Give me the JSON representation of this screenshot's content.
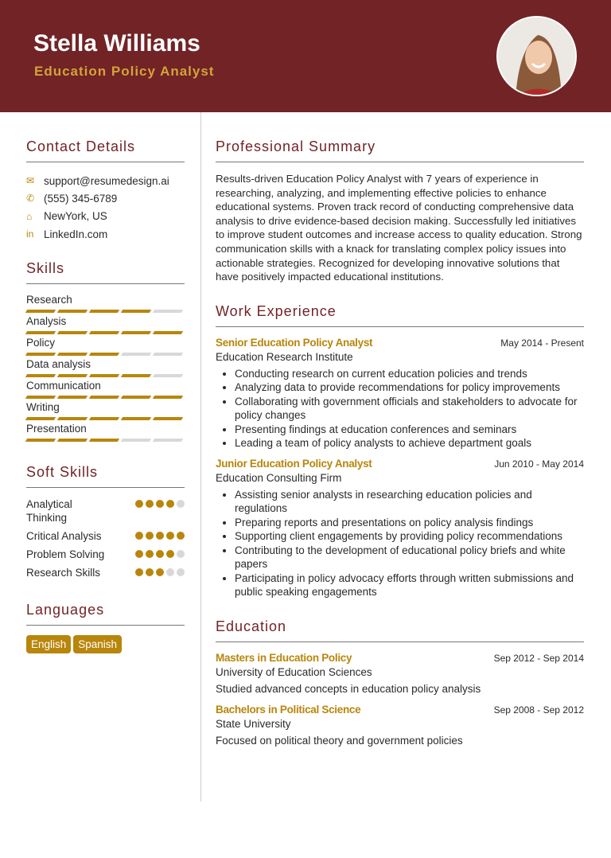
{
  "header": {
    "name": "Stella Williams",
    "title": "Education Policy Analyst"
  },
  "colors": {
    "header_bg": "#722326",
    "accent": "#b8860b",
    "heading": "#722326"
  },
  "contact": {
    "heading": "Contact Details",
    "items": [
      {
        "icon": "envelope-icon",
        "text": "support@resumedesign.ai"
      },
      {
        "icon": "phone-icon",
        "text": "(555) 345-6789"
      },
      {
        "icon": "home-icon",
        "text": "NewYork, US"
      },
      {
        "icon": "linkedin-icon",
        "text": "LinkedIn.com"
      }
    ]
  },
  "skills": {
    "heading": "Skills",
    "max": 5,
    "items": [
      {
        "label": "Research",
        "level": 4
      },
      {
        "label": "Analysis",
        "level": 5
      },
      {
        "label": "Policy",
        "level": 3
      },
      {
        "label": "Data analysis",
        "level": 4
      },
      {
        "label": "Communication",
        "level": 5
      },
      {
        "label": "Writing",
        "level": 5
      },
      {
        "label": "Presentation",
        "level": 3
      }
    ]
  },
  "soft_skills": {
    "heading": "Soft Skills",
    "max": 5,
    "items": [
      {
        "label": "Analytical Thinking",
        "level": 4
      },
      {
        "label": "Critical Analysis",
        "level": 5
      },
      {
        "label": "Problem Solving",
        "level": 4
      },
      {
        "label": "Research Skills",
        "level": 3
      }
    ]
  },
  "languages": {
    "heading": "Languages",
    "items": [
      "English",
      "Spanish"
    ]
  },
  "summary": {
    "heading": "Professional Summary",
    "text": "Results-driven Education Policy Analyst with 7 years of experience in researching, analyzing, and implementing effective policies to enhance educational systems. Proven track record of conducting comprehensive data analysis to drive evidence-based decision making. Successfully led initiatives to improve student outcomes and increase access to quality education. Strong communication skills with a knack for translating complex policy issues into actionable strategies. Recognized for developing innovative solutions that have positively impacted educational institutions."
  },
  "work": {
    "heading": "Work Experience",
    "jobs": [
      {
        "title": "Senior Education Policy Analyst",
        "dates": "May 2014 - Present",
        "org": "Education Research Institute",
        "bullets": [
          "Conducting research on current education policies and trends",
          "Analyzing data to provide recommendations for policy improvements",
          "Collaborating with government officials and stakeholders to advocate for policy changes",
          "Presenting findings at education conferences and seminars",
          "Leading a team of policy analysts to achieve department goals"
        ]
      },
      {
        "title": "Junior Education Policy Analyst",
        "dates": "Jun 2010 - May 2014",
        "org": "Education Consulting Firm",
        "bullets": [
          "Assisting senior analysts in researching education policies and regulations",
          "Preparing reports and presentations on policy analysis findings",
          "Supporting client engagements by providing policy recommendations",
          "Contributing to the development of educational policy briefs and white papers",
          "Participating in policy advocacy efforts through written submissions and public speaking engagements"
        ]
      }
    ]
  },
  "education": {
    "heading": "Education",
    "items": [
      {
        "degree": "Masters in Education Policy",
        "dates": "Sep 2012 - Sep 2014",
        "school": "University of Education Sciences",
        "desc": "Studied advanced concepts in education policy analysis"
      },
      {
        "degree": "Bachelors in Political Science",
        "dates": "Sep 2008 - Sep 2012",
        "school": "State University",
        "desc": "Focused on political theory and government policies"
      }
    ]
  }
}
